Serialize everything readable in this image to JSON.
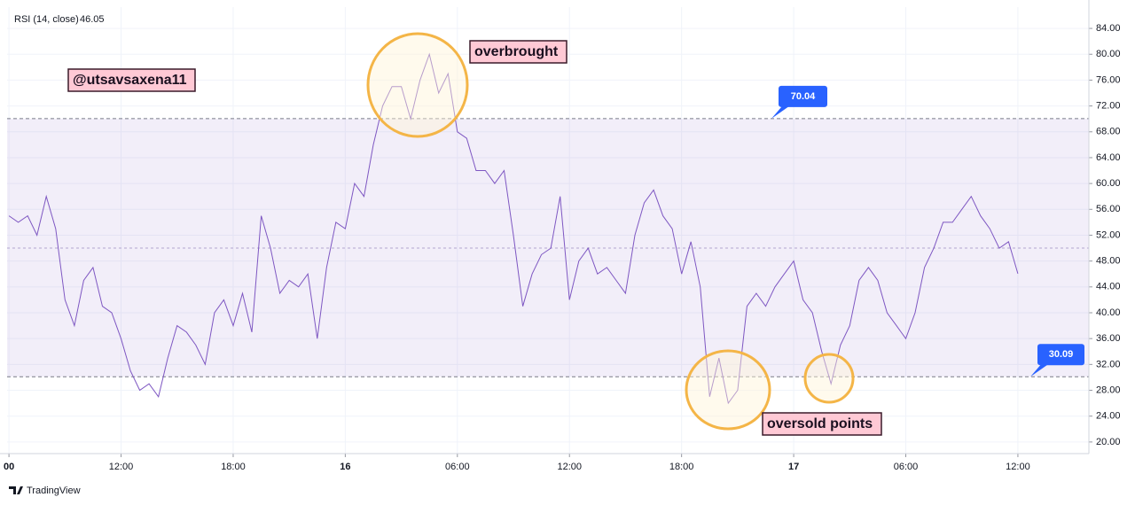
{
  "chart_data": {
    "type": "line",
    "title": "RSI (14, close)",
    "watermark": "@utsavsaxena11",
    "annotations": [
      "overbrought",
      "oversold points"
    ],
    "source": "TradingView",
    "color": "#7e57c2",
    "upper_band": 70.04,
    "middle_band": 50,
    "lower_band": 30.09,
    "x": [
      6,
      6.5,
      7,
      7.5,
      8,
      8.5,
      9,
      9.5,
      10,
      10.5,
      11,
      11.5,
      12,
      12.5,
      13,
      13.5,
      14,
      14.5,
      15,
      15.5,
      16,
      16.5,
      17,
      17.5,
      18,
      18.5,
      19,
      19.5,
      20,
      20.5,
      21,
      21.5,
      22,
      22.5,
      23,
      23.5,
      24,
      24.5,
      25,
      25.5,
      26,
      26.5,
      27,
      27.5,
      28,
      28.5,
      29,
      29.5,
      30,
      30.5,
      31,
      31.5,
      32,
      32.5,
      33,
      33.5,
      34,
      34.5,
      35,
      35.5,
      36,
      36.5,
      37,
      37.5,
      38,
      38.5,
      39,
      39.5,
      40,
      40.5,
      41,
      41.5,
      42,
      42.5,
      43,
      43.5,
      44,
      44.5,
      45,
      45.5,
      46,
      46.5,
      47,
      47.5,
      48,
      48.5,
      49,
      49.5,
      50,
      50.5,
      51,
      51.5,
      52,
      52.5,
      53,
      53.5,
      54,
      54.5,
      55,
      55.5,
      56,
      56.5,
      57,
      57.5,
      58,
      58.5,
      59,
      59.5,
      60
    ],
    "values": [
      55,
      54,
      55,
      52,
      58,
      53,
      42,
      38,
      45,
      47,
      41,
      40,
      36,
      31,
      28,
      29,
      27,
      33,
      38,
      37,
      35,
      32,
      40,
      42,
      38,
      43,
      37,
      55,
      50,
      43,
      45,
      44,
      46,
      36,
      47,
      54,
      53,
      60,
      58,
      66,
      72,
      75,
      75,
      70,
      76,
      80,
      74,
      77,
      68,
      67,
      62,
      62,
      60,
      62,
      52,
      41,
      46,
      49,
      50,
      58,
      42,
      48,
      50,
      46,
      47,
      45,
      43,
      52,
      57,
      59,
      55,
      53,
      46,
      51,
      44,
      27,
      33,
      26,
      28,
      41,
      43,
      41,
      44,
      46,
      48,
      42,
      40,
      34,
      29,
      35,
      38,
      45,
      47,
      45,
      40,
      38,
      36,
      40,
      47,
      50,
      54,
      54,
      56,
      58,
      55,
      53,
      50,
      51,
      46.05
    ],
    "xlim": [
      5.9,
      63.8
    ],
    "xticks": [
      {
        "value": 6,
        "label": "00"
      },
      {
        "value": 12,
        "label": "12:00"
      },
      {
        "value": 18,
        "label": "18:00"
      },
      {
        "value": 24,
        "label": "16"
      },
      {
        "value": 30,
        "label": "06:00"
      },
      {
        "value": 36,
        "label": "12:00"
      },
      {
        "value": 42,
        "label": "18:00"
      },
      {
        "value": 48,
        "label": "17"
      },
      {
        "value": 54,
        "label": "06:00"
      },
      {
        "value": 60,
        "label": "12:00"
      }
    ],
    "ylim": [
      18.2,
      87.3
    ],
    "yticks": [
      {
        "value": 20,
        "label": "20.00"
      },
      {
        "value": 24,
        "label": "24.00"
      },
      {
        "value": 28,
        "label": "28.00"
      },
      {
        "value": 32,
        "label": "32.00"
      },
      {
        "value": 36,
        "label": "36.00"
      },
      {
        "value": 40,
        "label": "40.00"
      },
      {
        "value": 44,
        "label": "44.00"
      },
      {
        "value": 48,
        "label": "48.00"
      },
      {
        "value": 52,
        "label": "52.00"
      },
      {
        "value": 56,
        "label": "56.00"
      },
      {
        "value": 60,
        "label": "60.00"
      },
      {
        "value": 64,
        "label": "64.00"
      },
      {
        "value": 68,
        "label": "68.00"
      },
      {
        "value": 72,
        "label": "72.00"
      },
      {
        "value": 76,
        "label": "76.00"
      },
      {
        "value": 80,
        "label": "80.00"
      },
      {
        "value": 84,
        "label": "84.00"
      }
    ],
    "grid": true
  }
}
